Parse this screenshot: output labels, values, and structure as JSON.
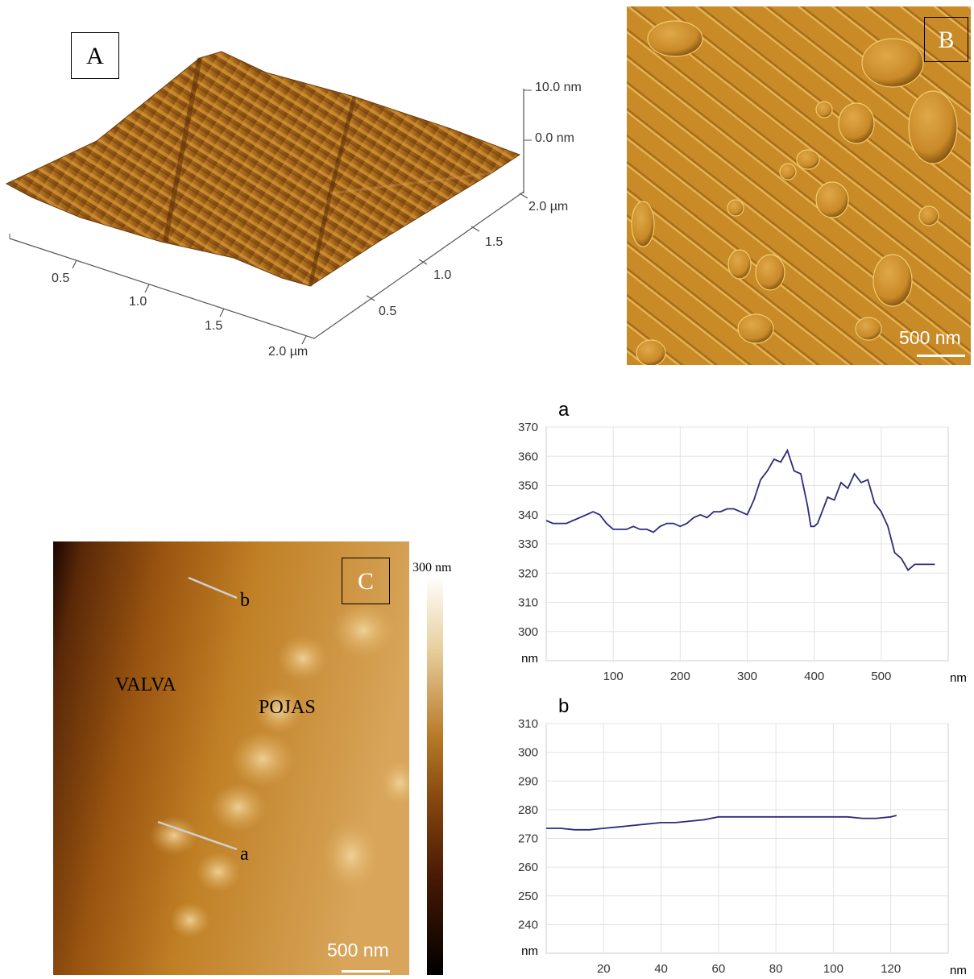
{
  "panel_a": {
    "label": "A",
    "z_axis_ticks": [
      "10.0 nm",
      "0.0 nm"
    ],
    "x_axis_ticks": [
      "0.5",
      "1.0",
      "1.5",
      "2.0 µm"
    ],
    "y_axis_ticks": [
      "0.5",
      "1.0",
      "1.5",
      "2.0 µm"
    ]
  },
  "panel_b": {
    "label": "B",
    "scale_bar_text": "500 nm"
  },
  "panel_c": {
    "label": "C",
    "region_label_left": "VALVA",
    "region_label_right": "POJAS",
    "line_label_a": "a",
    "line_label_b": "b",
    "colorbar_max": "300 nm",
    "scale_bar_text": "500 nm",
    "colors": {
      "dark": "#1a0500",
      "mid": "#b86a14",
      "light": "#f3dcb0"
    }
  },
  "chart_data": [
    {
      "type": "line",
      "title": "a",
      "xlabel": "nm",
      "ylabel": "nm",
      "xlim": [
        0,
        600
      ],
      "ylim": [
        290,
        370
      ],
      "xticks": [
        100,
        200,
        300,
        400,
        500
      ],
      "yticks": [
        300,
        310,
        320,
        330,
        340,
        350,
        360,
        370
      ],
      "grid": true,
      "line_color": "#2b2b7a",
      "x": [
        0,
        10,
        20,
        30,
        40,
        50,
        60,
        70,
        80,
        90,
        100,
        110,
        120,
        130,
        140,
        150,
        160,
        170,
        180,
        190,
        200,
        210,
        220,
        230,
        240,
        250,
        260,
        270,
        280,
        290,
        300,
        310,
        320,
        330,
        340,
        350,
        360,
        370,
        380,
        390,
        395,
        400,
        405,
        410,
        420,
        430,
        440,
        450,
        460,
        470,
        480,
        490,
        500,
        510,
        520,
        530,
        540,
        550,
        560,
        570,
        580
      ],
      "y": [
        338,
        337,
        337,
        337,
        338,
        339,
        340,
        341,
        340,
        337,
        335,
        335,
        335,
        336,
        335,
        335,
        334,
        336,
        337,
        337,
        336,
        337,
        339,
        340,
        339,
        341,
        341,
        342,
        342,
        341,
        340,
        345,
        352,
        355,
        359,
        358,
        362,
        355,
        354,
        343,
        336,
        336,
        337,
        340,
        346,
        345,
        351,
        349,
        354,
        351,
        352,
        344,
        341,
        336,
        327,
        325,
        321,
        323,
        323,
        323,
        323
      ]
    },
    {
      "type": "line",
      "title": "b",
      "xlabel": "nm",
      "ylabel": "nm",
      "xlim": [
        0,
        140
      ],
      "ylim": [
        230,
        310
      ],
      "xticks": [
        20,
        40,
        60,
        80,
        100,
        120
      ],
      "yticks": [
        240,
        250,
        260,
        270,
        280,
        290,
        300,
        310
      ],
      "grid": true,
      "line_color": "#2b2b7a",
      "x": [
        0,
        5,
        10,
        15,
        20,
        25,
        30,
        35,
        40,
        45,
        50,
        55,
        60,
        65,
        70,
        80,
        90,
        100,
        105,
        110,
        115,
        120,
        122
      ],
      "y": [
        273.5,
        273.5,
        273,
        273,
        273.5,
        274,
        274.5,
        275,
        275.5,
        275.5,
        276,
        276.5,
        277.5,
        277.5,
        277.5,
        277.5,
        277.5,
        277.5,
        277.5,
        277,
        277,
        277.5,
        278
      ]
    }
  ]
}
